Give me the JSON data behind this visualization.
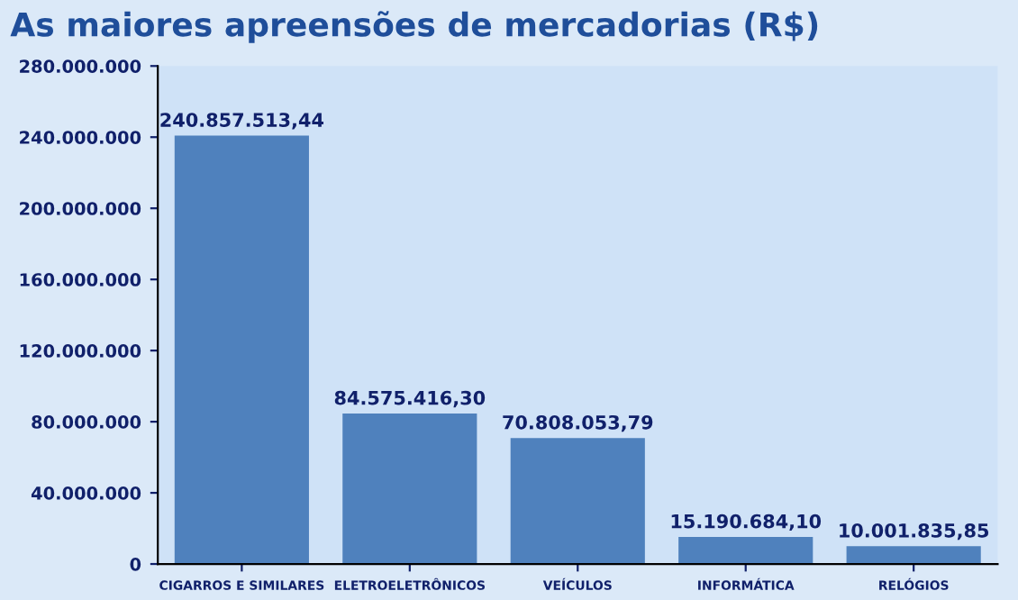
{
  "chart_data": {
    "type": "bar",
    "title": "As maiores apreensões de mercadorias (R$)",
    "categories": [
      "CIGARROS E SIMILARES",
      "ELETROELETRÔNICOS",
      "VEÍCULOS",
      "INFORMÁTICA",
      "RELÓGIOS"
    ],
    "values": [
      240857513.44,
      84575416.3,
      70808053.79,
      15190684.1,
      10001835.85
    ],
    "value_labels": [
      "240.857.513,44",
      "84.575.416,30",
      "70.808.053,79",
      "15.190.684,10",
      "10.001.835,85"
    ],
    "color": "#4f81bd",
    "ylim": [
      0,
      280000000
    ],
    "yticks": [
      {
        "value": 0,
        "label": "0"
      },
      {
        "value": 40000000,
        "label": "40.000.000"
      },
      {
        "value": 80000000,
        "label": "80.000.000"
      },
      {
        "value": 120000000,
        "label": "120.000.000"
      },
      {
        "value": 160000000,
        "label": "160.000.000"
      },
      {
        "value": 200000000,
        "label": "200.000.000"
      },
      {
        "value": 240000000,
        "label": "240.000.000"
      },
      {
        "value": 280000000,
        "label": "280.000.000"
      }
    ],
    "grid": false
  }
}
